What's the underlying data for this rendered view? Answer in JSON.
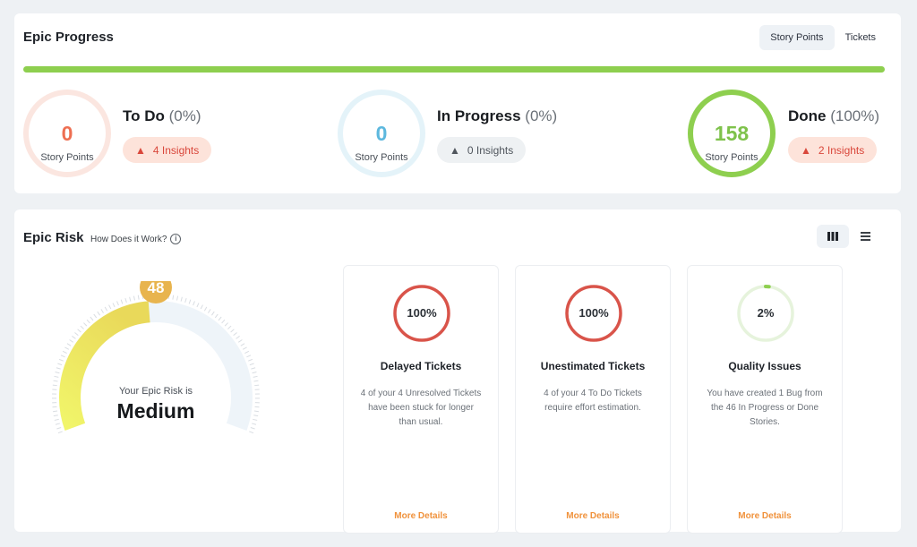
{
  "epic_progress": {
    "title": "Epic Progress",
    "toggle": {
      "story_points": "Story Points",
      "tickets": "Tickets",
      "active": "story_points"
    },
    "progress_color": "#8ecf4f",
    "stats": [
      {
        "value": "0",
        "unit": "Story Points",
        "name": "To Do",
        "percent": "(0%)",
        "insights": "4 Insights",
        "color": "#ee6f52",
        "insight_style": "warning"
      },
      {
        "value": "0",
        "unit": "Story Points",
        "name": "In Progress",
        "percent": "(0%)",
        "insights": "0 Insights",
        "color": "#5db8de",
        "insight_style": "neutral"
      },
      {
        "value": "158",
        "unit": "Story Points",
        "name": "Done",
        "percent": "(100%)",
        "insights": "2 Insights",
        "color": "#7ec24b",
        "insight_style": "warning"
      }
    ]
  },
  "epic_risk": {
    "title": "Epic Risk",
    "how_link": "How Does it Work?",
    "view_toggle": {
      "grid_icon": "columns-icon",
      "list_icon": "list-icon",
      "active": "grid"
    },
    "gauge": {
      "score": "48",
      "score_fraction": 0.48,
      "caption": "Your Epic Risk is",
      "level": "Medium"
    },
    "cards": [
      {
        "percent": "100%",
        "fraction": 1.0,
        "title": "Delayed Tickets",
        "description": "4 of your 4 Unresolved Tickets have been stuck for longer than usual.",
        "link": "More Details",
        "color": "#d9544a"
      },
      {
        "percent": "100%",
        "fraction": 1.0,
        "title": "Unestimated Tickets",
        "description": "4 of your 4 To Do Tickets require effort estimation.",
        "link": "More Details",
        "color": "#d9544a"
      },
      {
        "percent": "2%",
        "fraction": 0.02,
        "title": "Quality Issues",
        "description": "You have created 1 Bug from the 46 In Progress or Done Stories.",
        "link": "More Details",
        "color": "#8ecf4f"
      }
    ]
  }
}
